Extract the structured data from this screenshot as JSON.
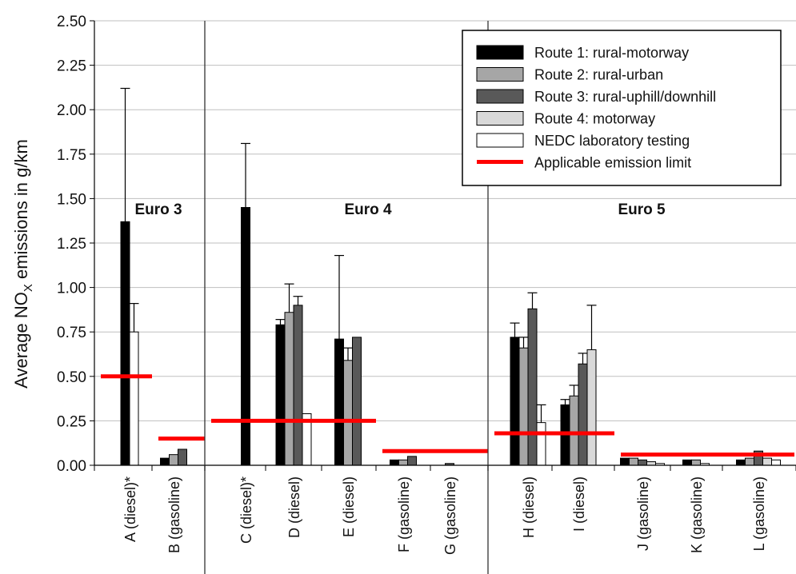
{
  "chart_data": {
    "type": "bar",
    "ylabel": "Average NO",
    "ylabel_sub": "X",
    "ylabel_rest": " emissions in g/km",
    "ylim": [
      0,
      2.5
    ],
    "yticks": [
      "0.00",
      "0.25",
      "0.50",
      "0.75",
      "1.00",
      "1.25",
      "1.50",
      "1.75",
      "2.00",
      "2.25",
      "2.50"
    ],
    "grid": true,
    "legend_position": "top-right",
    "categories": [
      "A (diesel)*",
      "B (gasoline)",
      "C (diesel)*",
      "D (diesel)",
      "E (diesel)",
      "F (gasoline)",
      "G (gasoline)",
      "H (diesel)",
      "I (diesel)",
      "J (gasoline)",
      "K (gasoline)",
      "L (gasoline)"
    ],
    "groups": [
      {
        "label": "Euro 3",
        "categories": [
          "A (diesel)*",
          "B (gasoline)"
        ]
      },
      {
        "label": "Euro 4",
        "categories": [
          "C (diesel)*",
          "D (diesel)",
          "E (diesel)",
          "F (gasoline)",
          "G (gasoline)"
        ]
      },
      {
        "label": "Euro 5",
        "categories": [
          "H (diesel)",
          "I (diesel)",
          "J (gasoline)",
          "K (gasoline)",
          "L (gasoline)"
        ]
      }
    ],
    "series": [
      {
        "name": "Route 1: rural-motorway",
        "color": "#000000",
        "values": [
          1.37,
          0.04,
          1.45,
          0.79,
          0.71,
          0.03,
          0.0,
          0.72,
          0.34,
          0.04,
          0.03,
          0.03
        ],
        "error": [
          0.75,
          0,
          0.36,
          0.03,
          0.47,
          0,
          0,
          0.08,
          0.03,
          0,
          0,
          0
        ]
      },
      {
        "name": "Route 2: rural-urban",
        "color": "#a6a6a6",
        "values": [
          0,
          0.06,
          0,
          0.86,
          0.59,
          0.03,
          0.0,
          0.66,
          0.39,
          0.04,
          0.03,
          0.04
        ],
        "error": [
          0,
          0,
          0,
          0.16,
          0.07,
          0,
          0,
          0.06,
          0.06,
          0,
          0,
          0
        ]
      },
      {
        "name": "Route 3: rural-uphill/downhill",
        "color": "#595959",
        "values": [
          0,
          0.09,
          0,
          0.9,
          0.72,
          0.05,
          0.01,
          0.88,
          0.57,
          0.03,
          0.0,
          0.08
        ],
        "error": [
          0,
          0,
          0,
          0.05,
          0,
          0,
          0,
          0.09,
          0.06,
          0,
          0,
          0
        ]
      },
      {
        "name": "Route 4: motorway",
        "color": "#d9d9d9",
        "values": [
          0,
          0,
          0,
          0,
          0,
          0,
          0,
          0,
          0.65,
          0.02,
          0,
          0.04
        ],
        "error": [
          0,
          0,
          0,
          0,
          0,
          0,
          0,
          0,
          0.25,
          0,
          0,
          0
        ]
      },
      {
        "name": "NEDC laboratory testing",
        "color": "#ffffff",
        "values": [
          0.75,
          0,
          0,
          0.29,
          0,
          0,
          0,
          0.24,
          0,
          0.01,
          0.01,
          0.03
        ],
        "error": [
          0.16,
          0,
          0,
          0,
          0,
          0,
          0,
          0.1,
          0,
          0,
          0,
          0
        ]
      }
    ],
    "emission_limits": [
      {
        "name": "Applicable emission limit",
        "color": "#ff0000",
        "value": 0.5,
        "from": 0,
        "to": 1
      },
      {
        "value": 0.15,
        "from": 1,
        "to": 2
      },
      {
        "value": 0.25,
        "from": 2,
        "to": 5
      },
      {
        "value": 0.08,
        "from": 5,
        "to": 7
      },
      {
        "value": 0.18,
        "from": 7,
        "to": 9
      },
      {
        "value": 0.06,
        "from": 9,
        "to": 12
      }
    ],
    "legend_limit_label": "Applicable emission limit"
  }
}
